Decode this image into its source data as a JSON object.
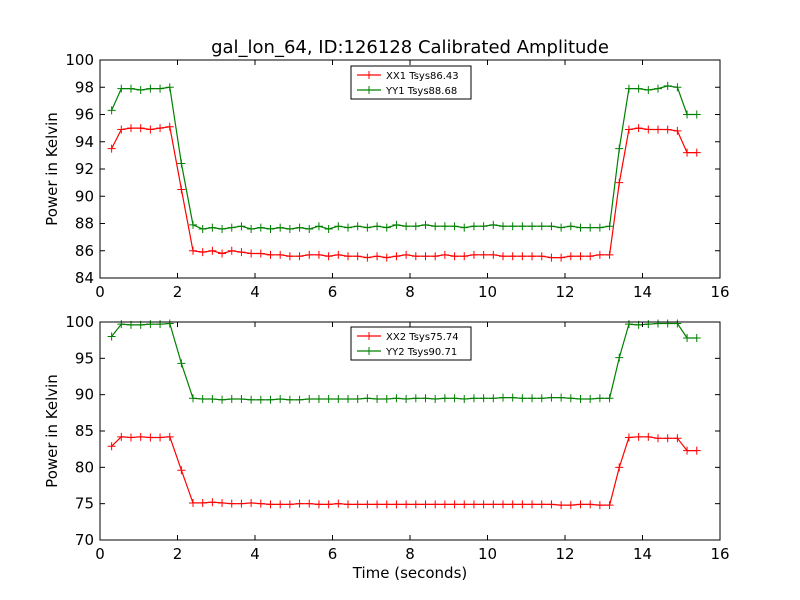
{
  "figure": {
    "title": "gal_lon_64, ID:126128 Calibrated Amplitude",
    "xlabel": "Time (seconds)"
  },
  "chart_data": [
    {
      "type": "line",
      "ylabel": "Power in Kelvin",
      "xlim": [
        0,
        16
      ],
      "ylim": [
        84,
        100
      ],
      "xticks": [
        "0",
        "2",
        "4",
        "6",
        "8",
        "10",
        "12",
        "14",
        "16"
      ],
      "yticks": [
        "84",
        "86",
        "88",
        "90",
        "92",
        "94",
        "96",
        "98",
        "100"
      ],
      "grid": false,
      "legend_position": "top-center",
      "x": [
        0.3,
        0.55,
        0.8,
        1.05,
        1.3,
        1.55,
        1.8,
        2.1,
        2.4,
        2.65,
        2.9,
        3.15,
        3.4,
        3.65,
        3.9,
        4.15,
        4.4,
        4.65,
        4.9,
        5.15,
        5.4,
        5.65,
        5.9,
        6.15,
        6.4,
        6.65,
        6.9,
        7.15,
        7.4,
        7.65,
        7.9,
        8.15,
        8.4,
        8.65,
        8.9,
        9.15,
        9.4,
        9.65,
        9.9,
        10.15,
        10.4,
        10.65,
        10.9,
        11.15,
        11.4,
        11.65,
        11.9,
        12.15,
        12.4,
        12.65,
        12.9,
        13.15,
        13.4,
        13.65,
        13.9,
        14.15,
        14.4,
        14.65,
        14.9,
        15.15,
        15.4
      ],
      "series": [
        {
          "name": "XX1 Tsys86.43",
          "color": "#ff0000",
          "values": [
            93.5,
            94.9,
            95.0,
            95.0,
            94.9,
            95.0,
            95.1,
            90.5,
            86.0,
            85.9,
            86.0,
            85.8,
            86.0,
            85.9,
            85.8,
            85.8,
            85.7,
            85.7,
            85.6,
            85.6,
            85.7,
            85.7,
            85.6,
            85.7,
            85.6,
            85.6,
            85.5,
            85.6,
            85.5,
            85.6,
            85.7,
            85.6,
            85.6,
            85.6,
            85.7,
            85.6,
            85.6,
            85.7,
            85.7,
            85.7,
            85.6,
            85.6,
            85.6,
            85.6,
            85.6,
            85.5,
            85.5,
            85.6,
            85.6,
            85.6,
            85.7,
            85.7,
            91.0,
            94.9,
            95.0,
            94.9,
            94.9,
            94.9,
            94.8,
            93.2,
            93.2
          ]
        },
        {
          "name": "YY1 Tsys88.68",
          "color": "#008000",
          "values": [
            96.3,
            97.9,
            97.9,
            97.8,
            97.9,
            97.9,
            98.0,
            92.4,
            87.9,
            87.6,
            87.7,
            87.6,
            87.7,
            87.8,
            87.6,
            87.7,
            87.6,
            87.7,
            87.6,
            87.7,
            87.6,
            87.8,
            87.6,
            87.8,
            87.7,
            87.8,
            87.7,
            87.8,
            87.7,
            87.9,
            87.8,
            87.8,
            87.9,
            87.8,
            87.8,
            87.8,
            87.7,
            87.8,
            87.8,
            87.9,
            87.8,
            87.8,
            87.8,
            87.8,
            87.8,
            87.8,
            87.7,
            87.8,
            87.7,
            87.7,
            87.7,
            87.8,
            93.5,
            97.9,
            97.9,
            97.8,
            97.9,
            98.1,
            98.0,
            96.0,
            96.0
          ]
        }
      ]
    },
    {
      "type": "line",
      "ylabel": "Power in Kelvin",
      "xlim": [
        0,
        16
      ],
      "ylim": [
        70,
        100
      ],
      "xticks": [
        "0",
        "2",
        "4",
        "6",
        "8",
        "10",
        "12",
        "14",
        "16"
      ],
      "yticks": [
        "70",
        "75",
        "80",
        "85",
        "90",
        "95",
        "100"
      ],
      "grid": false,
      "legend_position": "top-center",
      "x": [
        0.3,
        0.55,
        0.8,
        1.05,
        1.3,
        1.55,
        1.8,
        2.1,
        2.4,
        2.65,
        2.9,
        3.15,
        3.4,
        3.65,
        3.9,
        4.15,
        4.4,
        4.65,
        4.9,
        5.15,
        5.4,
        5.65,
        5.9,
        6.15,
        6.4,
        6.65,
        6.9,
        7.15,
        7.4,
        7.65,
        7.9,
        8.15,
        8.4,
        8.65,
        8.9,
        9.15,
        9.4,
        9.65,
        9.9,
        10.15,
        10.4,
        10.65,
        10.9,
        11.15,
        11.4,
        11.65,
        11.9,
        12.15,
        12.4,
        12.65,
        12.9,
        13.15,
        13.4,
        13.65,
        13.9,
        14.15,
        14.4,
        14.65,
        14.9,
        15.15,
        15.4
      ],
      "series": [
        {
          "name": "XX2 Tsys75.74",
          "color": "#ff0000",
          "values": [
            82.9,
            84.2,
            84.1,
            84.2,
            84.1,
            84.1,
            84.2,
            79.6,
            75.1,
            75.1,
            75.2,
            75.1,
            75.0,
            75.0,
            75.1,
            75.0,
            74.9,
            74.9,
            74.9,
            75.0,
            75.0,
            74.9,
            74.9,
            75.0,
            74.9,
            74.9,
            74.9,
            74.9,
            74.9,
            74.9,
            74.9,
            74.9,
            74.9,
            74.9,
            74.9,
            74.9,
            74.9,
            74.9,
            74.9,
            74.9,
            74.9,
            74.9,
            74.9,
            74.9,
            74.9,
            74.9,
            74.8,
            74.8,
            74.9,
            74.9,
            74.8,
            74.8,
            80.0,
            84.1,
            84.2,
            84.2,
            84.0,
            84.0,
            84.0,
            82.3,
            82.3
          ]
        },
        {
          "name": "YY2 Tsys90.71",
          "color": "#008000",
          "values": [
            98.0,
            99.7,
            99.6,
            99.6,
            99.7,
            99.7,
            99.8,
            94.3,
            89.5,
            89.4,
            89.4,
            89.3,
            89.4,
            89.4,
            89.3,
            89.3,
            89.3,
            89.4,
            89.3,
            89.3,
            89.4,
            89.4,
            89.4,
            89.4,
            89.4,
            89.4,
            89.5,
            89.4,
            89.4,
            89.5,
            89.4,
            89.5,
            89.5,
            89.4,
            89.5,
            89.5,
            89.4,
            89.5,
            89.5,
            89.5,
            89.6,
            89.6,
            89.5,
            89.5,
            89.5,
            89.6,
            89.6,
            89.5,
            89.4,
            89.4,
            89.5,
            89.5,
            95.1,
            99.7,
            99.6,
            99.7,
            99.8,
            99.8,
            99.8,
            97.8,
            97.8
          ]
        }
      ]
    }
  ]
}
